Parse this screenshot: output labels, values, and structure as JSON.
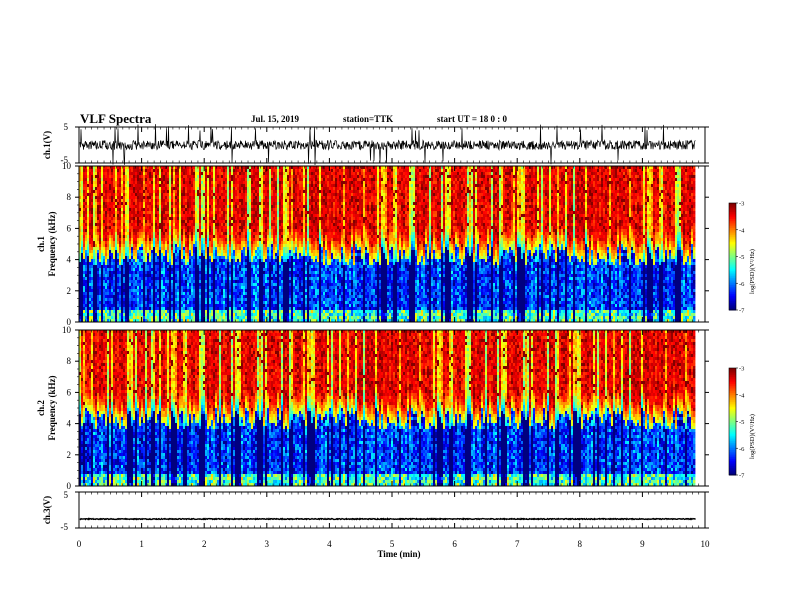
{
  "header": {
    "title": "VLF Spectra",
    "date": "Jul. 15, 2019",
    "station": "station=TTK",
    "start_ut": "start UT =  18 0 : 0"
  },
  "chart_data": [
    {
      "type": "line",
      "panel": "waveform-ch1",
      "ylabel": "ch.1(V)",
      "yticks": [
        "5",
        "-5"
      ],
      "ylim": [
        -5,
        5
      ],
      "xlim": [
        0,
        10
      ],
      "baseline_value": 0,
      "description_level": "noisy waveform with frequent spikes reaching the axis limits"
    },
    {
      "type": "heatmap",
      "panel": "spectrogram-ch1",
      "ylabel_top": "ch.1",
      "ylabel": "Frequency (kHz)",
      "yticks": [
        "0",
        "2",
        "4",
        "6",
        "8",
        "10"
      ],
      "ylim": [
        0,
        10
      ],
      "xlim": [
        0,
        10
      ],
      "colorbar": {
        "label": "log(PSD)(V²/Hz)",
        "ticks": [
          "-3",
          "-4",
          "-5",
          "-6",
          "-7"
        ],
        "range": [
          -7,
          -3
        ]
      }
    },
    {
      "type": "heatmap",
      "panel": "spectrogram-ch2",
      "ylabel_top": "ch.2",
      "ylabel": "Frequency (kHz)",
      "yticks": [
        "0",
        "2",
        "4",
        "6",
        "8",
        "10"
      ],
      "ylim": [
        0,
        10
      ],
      "xlim": [
        0,
        10
      ],
      "colorbar": {
        "label": "log(PSD)(V²/Hz)",
        "ticks": [
          "-3",
          "-4",
          "-5",
          "-6",
          "-7"
        ],
        "range": [
          -7,
          -3
        ]
      }
    },
    {
      "type": "line",
      "panel": "waveform-ch3",
      "ylabel": "ch.3(V)",
      "yticks": [
        "5",
        "-5"
      ],
      "ylim": [
        -5,
        5
      ],
      "xlim": [
        0,
        10
      ],
      "baseline_value": -2.5
    }
  ],
  "xaxis": {
    "label": "Time (min)",
    "ticks": [
      "0",
      "1",
      "2",
      "3",
      "4",
      "5",
      "6",
      "7",
      "8",
      "9",
      "10"
    ],
    "data_end": 9.85
  }
}
